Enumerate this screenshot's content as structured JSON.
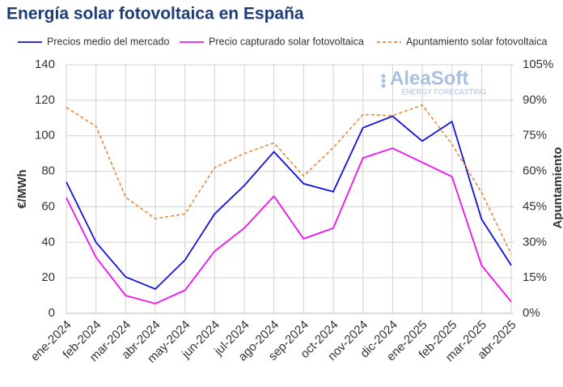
{
  "chart_data": {
    "type": "line",
    "title": "Energía solar fotovoltaica en España",
    "categories": [
      "ene-2024",
      "feb-2024",
      "mar-2024",
      "abr-2024",
      "may-2024",
      "jun-2024",
      "jul-2024",
      "ago-2024",
      "sep-2024",
      "oct-2024",
      "nov-2024",
      "dic-2024",
      "ene-2025",
      "feb-2025",
      "mar-2025",
      "abr-2025"
    ],
    "series": [
      {
        "name": "Precios medio del mercado",
        "color": "#1010e0",
        "values": [
          74,
          40,
          20.5,
          13.7,
          30,
          56,
          72,
          91,
          73,
          68.5,
          104.5,
          111,
          97,
          108,
          53,
          27
        ]
      },
      {
        "name": "Precio capturado solar fotovoltaica",
        "color": "#f010f0",
        "values": [
          65,
          31.5,
          10,
          5.5,
          13,
          35,
          48,
          66,
          42,
          48,
          87.5,
          93,
          85,
          77,
          27,
          6.5
        ]
      },
      {
        "name": "Apuntamiento solar fotovoltaica",
        "color": "#e8883a",
        "dashed": true,
        "axis": "y2",
        "values": [
          87,
          79,
          49,
          40,
          42,
          61.5,
          67.5,
          72,
          58,
          70,
          84,
          83.5,
          88,
          71.5,
          51,
          25
        ]
      }
    ],
    "ylabel": "€/MWh",
    "y2label": "Apuntamiento",
    "ylim": [
      0,
      140
    ],
    "yticks": [
      0,
      20,
      40,
      60,
      80,
      100,
      120,
      140
    ],
    "y2lim": [
      0,
      105
    ],
    "y2ticks": [
      {
        "value": 0,
        "label": "0%"
      },
      {
        "value": 15,
        "label": "15%"
      },
      {
        "value": 30,
        "label": "30%"
      },
      {
        "value": 45,
        "label": "45%"
      },
      {
        "value": 60,
        "label": "60%"
      },
      {
        "value": 75,
        "label": "75%"
      },
      {
        "value": 90,
        "label": "90%"
      },
      {
        "value": 105,
        "label": "105%"
      }
    ],
    "grid": true,
    "legend": "top",
    "watermark": {
      "brand": "AleaSoft",
      "tagline": "ENERGY FORECASTING"
    }
  }
}
